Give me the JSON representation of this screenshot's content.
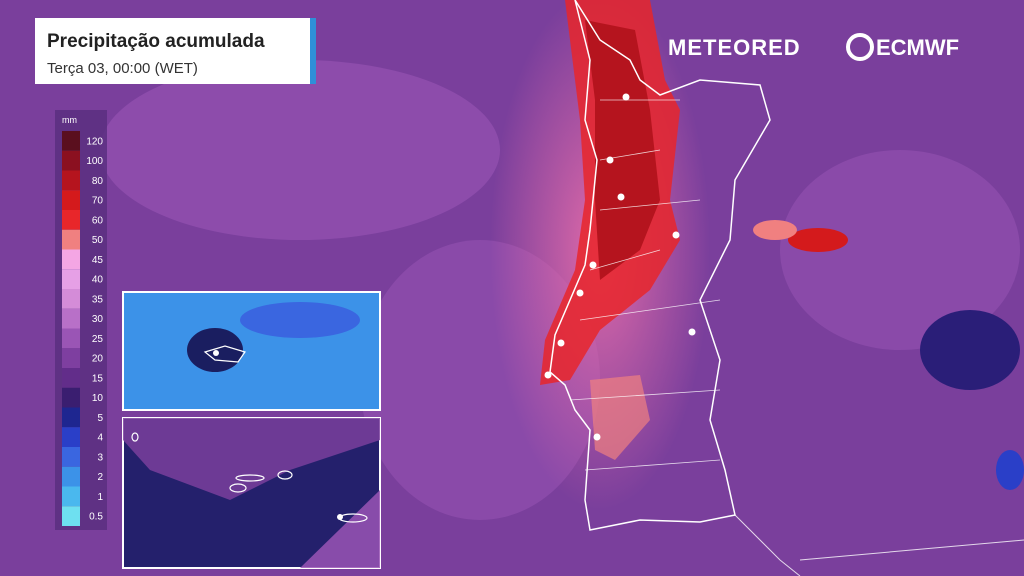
{
  "header": {
    "title": "Precipitação acumulada",
    "subtitle": "Terça 03, 00:00 (WET)"
  },
  "logos": {
    "meteored": "METEORED",
    "ecmwf": "ECMWF"
  },
  "legend": {
    "unit": "mm",
    "levels": [
      {
        "value": 120,
        "color": "#5a0f1e"
      },
      {
        "value": 100,
        "color": "#8b1020"
      },
      {
        "value": 80,
        "color": "#b5141e"
      },
      {
        "value": 70,
        "color": "#d41a1c"
      },
      {
        "value": 60,
        "color": "#e8262a"
      },
      {
        "value": 50,
        "color": "#f08080"
      },
      {
        "value": 45,
        "color": "#f4a6e4"
      },
      {
        "value": 40,
        "color": "#e6a0e6"
      },
      {
        "value": 35,
        "color": "#d48cd8"
      },
      {
        "value": 30,
        "color": "#b870c8"
      },
      {
        "value": 25,
        "color": "#9a55b5"
      },
      {
        "value": 20,
        "color": "#7e3fa0"
      },
      {
        "value": 15,
        "color": "#622d8a"
      },
      {
        "value": 10,
        "color": "#3a1e70"
      },
      {
        "value": 5,
        "color": "#1e2690"
      },
      {
        "value": 4,
        "color": "#2a3fc8"
      },
      {
        "value": 3,
        "color": "#3a66e0"
      },
      {
        "value": 2,
        "color": "#3c92e8"
      },
      {
        "value": 1,
        "color": "#4ab8ee"
      },
      {
        "value": 0.5,
        "color": "#6ee0f0"
      }
    ]
  }
}
